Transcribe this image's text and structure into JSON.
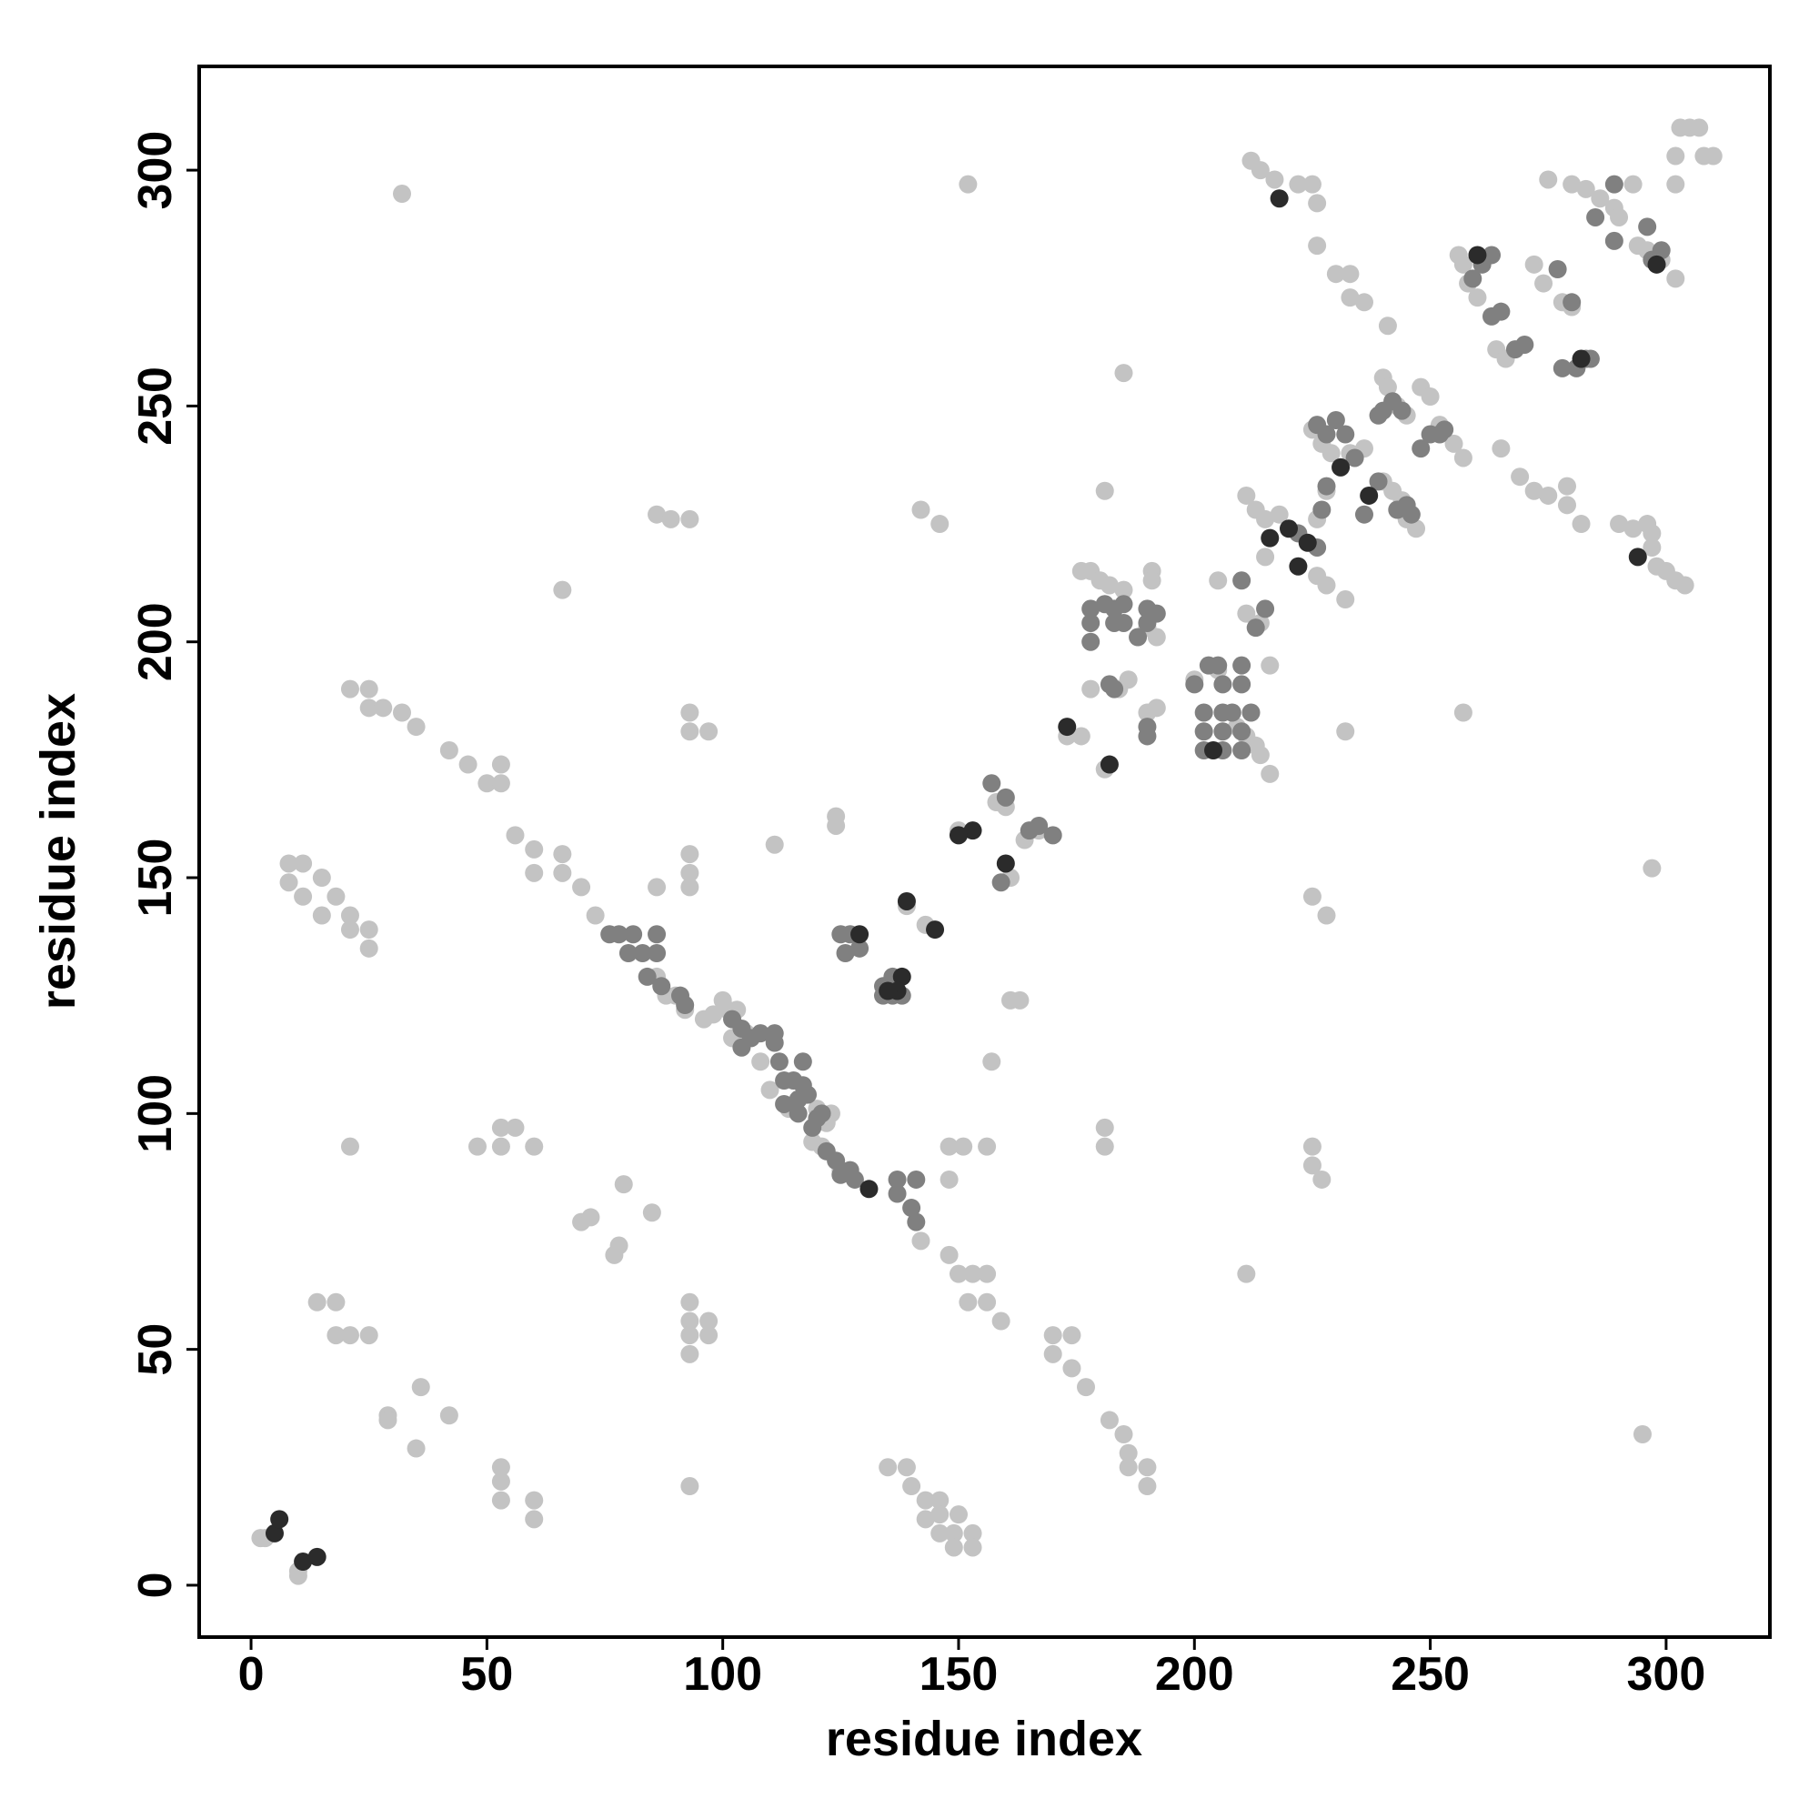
{
  "chart_data": {
    "type": "scatter",
    "xlabel": "residue index",
    "ylabel": "residue index",
    "xlim": [
      -11,
      322
    ],
    "ylim": [
      -11,
      322
    ],
    "xticks": [
      0,
      50,
      100,
      150,
      200,
      250,
      300
    ],
    "yticks": [
      0,
      50,
      100,
      150,
      200,
      250,
      300
    ],
    "series": [
      {
        "color": "#c3c3c3",
        "x": [
          2,
          3,
          10,
          10,
          21,
          25,
          25,
          28,
          32,
          35,
          42,
          46,
          50,
          53,
          53,
          56,
          60,
          60,
          66,
          66,
          70,
          73,
          8,
          8,
          11,
          11,
          15,
          15,
          18,
          21,
          21,
          25,
          25,
          21,
          48,
          53,
          53,
          56,
          60,
          14,
          18,
          18,
          21,
          25,
          29,
          29,
          36,
          35,
          42,
          53,
          53,
          53,
          60,
          60,
          70,
          72,
          77,
          78,
          79,
          85,
          86,
          89,
          93,
          66,
          32,
          152,
          93,
          93,
          97,
          111,
          86,
          93,
          93,
          93,
          93,
          93,
          93,
          97,
          97,
          93,
          93,
          135,
          139,
          140,
          143,
          146,
          146,
          143,
          146,
          149,
          150,
          149,
          153,
          153,
          148,
          151,
          156,
          148,
          148,
          150,
          153,
          156,
          152,
          156,
          159,
          142,
          170,
          174,
          170,
          174,
          177,
          182,
          185,
          186,
          186,
          190,
          190,
          181,
          181,
          157,
          161,
          163,
          225,
          225,
          227,
          211,
          225,
          228,
          257,
          297,
          295,
          232,
          181,
          185,
          142,
          146,
          212,
          214,
          217,
          222,
          225,
          226,
          226,
          230,
          233,
          233,
          236,
          241,
          265,
          269,
          272,
          275,
          279,
          279,
          282,
          290,
          293,
          296,
          297,
          297,
          298,
          300,
          302,
          304,
          275,
          280,
          283,
          286,
          289,
          293,
          290,
          294,
          296,
          299,
          302,
          303,
          305,
          307,
          302,
          302,
          308,
          310,
          256,
          257,
          258,
          260,
          264,
          266,
          272,
          274,
          278,
          280,
          240,
          241,
          243,
          245,
          248,
          250,
          252,
          255,
          257,
          240,
          242,
          244,
          245,
          247,
          225,
          227,
          229,
          233,
          236,
          228,
          226,
          226,
          228,
          232,
          211,
          213,
          215,
          218,
          215,
          176,
          178,
          180,
          182,
          185,
          191,
          191,
          190,
          192,
          190,
          192,
          186,
          184,
          178,
          181,
          173,
          176,
          200,
          205,
          209,
          211,
          213,
          214,
          216,
          205,
          211,
          214,
          216,
          164,
          167,
          158,
          160,
          161,
          150,
          139,
          143,
          123,
          120,
          122,
          119,
          121,
          125,
          124,
          124,
          108,
          105,
          100,
          101,
          103,
          102,
          110,
          114,
          98,
          96,
          92,
          88,
          86,
          90
        ],
        "values": [
          10,
          10,
          2,
          3,
          190,
          190,
          186,
          186,
          185,
          182,
          177,
          174,
          170,
          174,
          170,
          159,
          156,
          151,
          155,
          151,
          148,
          142,
          153,
          149,
          153,
          146,
          150,
          142,
          146,
          142,
          139,
          139,
          135,
          93,
          93,
          97,
          93,
          97,
          93,
          60,
          60,
          53,
          53,
          53,
          36,
          35,
          42,
          29,
          36,
          25,
          22,
          18,
          18,
          14,
          77,
          78,
          70,
          72,
          85,
          79,
          227,
          226,
          226,
          211,
          295,
          297,
          185,
          181,
          181,
          157,
          148,
          155,
          151,
          148,
          60,
          56,
          53,
          56,
          53,
          49,
          21,
          25,
          25,
          21,
          18,
          18,
          15,
          14,
          11,
          11,
          15,
          8,
          11,
          8,
          93,
          93,
          93,
          86,
          70,
          66,
          66,
          66,
          60,
          60,
          56,
          73,
          53,
          53,
          49,
          46,
          42,
          35,
          32,
          28,
          25,
          25,
          21,
          97,
          93,
          111,
          124,
          124,
          93,
          89,
          86,
          66,
          146,
          142,
          185,
          152,
          32,
          181,
          232,
          257,
          228,
          225,
          302,
          300,
          298,
          297,
          297,
          293,
          284,
          278,
          278,
          273,
          272,
          267,
          241,
          235,
          232,
          231,
          233,
          229,
          225,
          225,
          224,
          225,
          223,
          220,
          216,
          215,
          213,
          212,
          298,
          297,
          296,
          294,
          292,
          297,
          290,
          284,
          283,
          281,
          277,
          309,
          309,
          309,
          297,
          303,
          303,
          303,
          282,
          280,
          276,
          273,
          262,
          260,
          280,
          276,
          272,
          271,
          256,
          254,
          250,
          248,
          254,
          252,
          246,
          242,
          239,
          234,
          232,
          230,
          226,
          224,
          245,
          242,
          240,
          240,
          241,
          232,
          226,
          214,
          212,
          209,
          231,
          228,
          226,
          227,
          218,
          215,
          215,
          213,
          212,
          211,
          215,
          213,
          203,
          201,
          185,
          186,
          192,
          190,
          190,
          173,
          180,
          180,
          192,
          194,
          182,
          180,
          178,
          176,
          172,
          213,
          206,
          204,
          195,
          158,
          160,
          166,
          165,
          150,
          160,
          144,
          140,
          100,
          101,
          98,
          94,
          93,
          88,
          163,
          161,
          111,
          117,
          124,
          122,
          122,
          116,
          105,
          101,
          121,
          120,
          122,
          125,
          129,
          125
        ]
      },
      {
        "color": "#808080",
        "x": [
          76,
          78,
          81,
          83,
          86,
          86,
          84,
          87,
          91,
          92,
          80,
          102,
          104,
          104,
          106,
          108,
          111,
          111,
          112,
          117,
          113,
          115,
          116,
          116,
          117,
          118,
          120,
          121,
          119,
          122,
          124,
          125,
          127,
          128,
          113,
          125,
          126,
          127,
          129,
          134,
          134,
          136,
          138,
          136,
          157,
          160,
          159,
          165,
          167,
          170,
          178,
          178,
          178,
          181,
          183,
          183,
          185,
          185,
          190,
          190,
          192,
          188,
          190,
          190,
          182,
          183,
          202,
          202,
          202,
          205,
          206,
          206,
          206,
          206,
          210,
          210,
          208,
          210,
          210,
          212,
          200,
          203,
          210,
          215,
          213,
          222,
          226,
          227,
          228,
          228,
          226,
          230,
          232,
          234,
          236,
          239,
          243,
          245,
          246,
          239,
          240,
          242,
          244,
          248,
          250,
          252,
          253,
          259,
          261,
          263,
          263,
          265,
          268,
          270,
          277,
          280,
          281,
          283,
          284,
          285,
          289,
          289,
          296,
          297,
          299,
          278,
          137,
          141,
          137,
          140,
          141
        ],
        "values": [
          138,
          138,
          138,
          134,
          138,
          134,
          129,
          127,
          125,
          123,
          134,
          120,
          118,
          114,
          116,
          117,
          117,
          115,
          111,
          111,
          107,
          107,
          103,
          100,
          106,
          104,
          99,
          100,
          97,
          92,
          90,
          87,
          88,
          86,
          102,
          138,
          134,
          138,
          135,
          127,
          125,
          125,
          125,
          129,
          170,
          167,
          149,
          160,
          161,
          159,
          207,
          204,
          200,
          208,
          207,
          204,
          208,
          204,
          207,
          204,
          206,
          201,
          182,
          180,
          191,
          190,
          185,
          181,
          177,
          195,
          191,
          185,
          181,
          177,
          195,
          191,
          185,
          181,
          177,
          185,
          191,
          195,
          213,
          207,
          203,
          223,
          220,
          228,
          233,
          244,
          246,
          247,
          244,
          239,
          227,
          234,
          228,
          229,
          227,
          248,
          249,
          251,
          249,
          241,
          244,
          244,
          245,
          277,
          280,
          282,
          269,
          270,
          262,
          263,
          279,
          272,
          258,
          260,
          260,
          290,
          297,
          285,
          288,
          281,
          283,
          258,
          86,
          86,
          83,
          80,
          77
        ]
      },
      {
        "color": "#2b2b2b",
        "x": [
          5,
          6,
          11,
          14,
          129,
          138,
          137,
          139,
          145,
          153,
          160,
          150,
          173,
          182,
          204,
          218,
          222,
          216,
          220,
          224,
          260,
          282,
          294,
          298,
          231,
          237,
          131,
          135
        ],
        "values": [
          11,
          14,
          5,
          6,
          138,
          129,
          126,
          145,
          139,
          160,
          153,
          159,
          182,
          174,
          177,
          294,
          216,
          222,
          224,
          221,
          282,
          260,
          218,
          280,
          237,
          231,
          84,
          126
        ]
      }
    ]
  }
}
